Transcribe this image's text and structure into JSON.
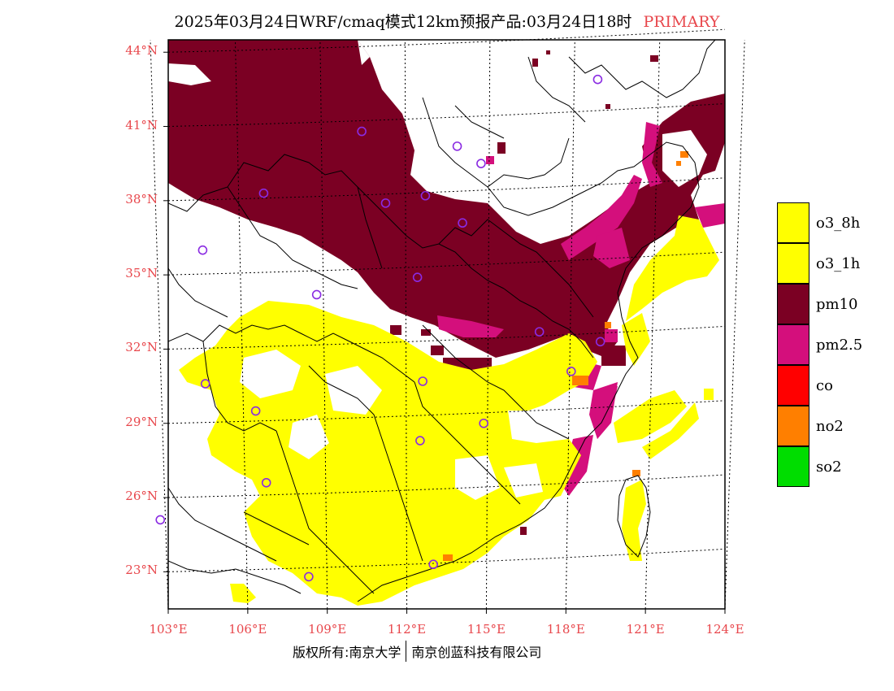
{
  "title": {
    "main": "2025年03月24日WRF/cmaq模式12km预报产品:03月24日18时",
    "tag": "PRIMARY"
  },
  "map": {
    "lat_labels": [
      "44°N",
      "41°N",
      "38°N",
      "35°N",
      "32°N",
      "29°N",
      "26°N",
      "23°N"
    ],
    "lon_labels": [
      "103°E",
      "106°E",
      "109°E",
      "112°E",
      "115°E",
      "118°E",
      "121°E",
      "124°E"
    ],
    "bounds": {
      "lon_min": 103,
      "lon_max": 124,
      "lat_min": 21.5,
      "lat_max": 44.5
    },
    "colors": {
      "pm10": "#7b0023",
      "pm25": "#d40f7c",
      "o3": "#ffff00",
      "no2": "#ff7f00",
      "co": "#ff0000",
      "so2": "#00dd00",
      "station": "#8a2be2",
      "label": "#e8474c"
    },
    "stations": [
      [
        110.3,
        40.8
      ],
      [
        113.9,
        40.2
      ],
      [
        114.8,
        39.5
      ],
      [
        106.6,
        38.3
      ],
      [
        111.2,
        37.9
      ],
      [
        112.7,
        38.2
      ],
      [
        114.1,
        37.1
      ],
      [
        104.3,
        36.0
      ],
      [
        112.4,
        34.9
      ],
      [
        108.6,
        34.2
      ],
      [
        117.0,
        32.7
      ],
      [
        119.3,
        32.3
      ],
      [
        118.2,
        31.1
      ],
      [
        104.4,
        30.6
      ],
      [
        112.6,
        30.7
      ],
      [
        106.3,
        29.5
      ],
      [
        114.9,
        29.0
      ],
      [
        112.5,
        28.3
      ],
      [
        106.7,
        26.6
      ],
      [
        113.0,
        23.3
      ],
      [
        108.3,
        22.8
      ],
      [
        102.7,
        25.1
      ],
      [
        119.2,
        42.9
      ]
    ]
  },
  "legend": {
    "items": [
      {
        "label": "o3_8h",
        "color": "#ffff00"
      },
      {
        "label": "o3_1h",
        "color": "#ffff00"
      },
      {
        "label": "pm10",
        "color": "#7b0023"
      },
      {
        "label": "pm2.5",
        "color": "#d40f7c"
      },
      {
        "label": "co",
        "color": "#ff0000"
      },
      {
        "label": "no2",
        "color": "#ff7f00"
      },
      {
        "label": "so2",
        "color": "#00dd00"
      }
    ]
  },
  "footer": {
    "left": "版权所有:南京大学",
    "right": "南京创蓝科技有限公司"
  }
}
